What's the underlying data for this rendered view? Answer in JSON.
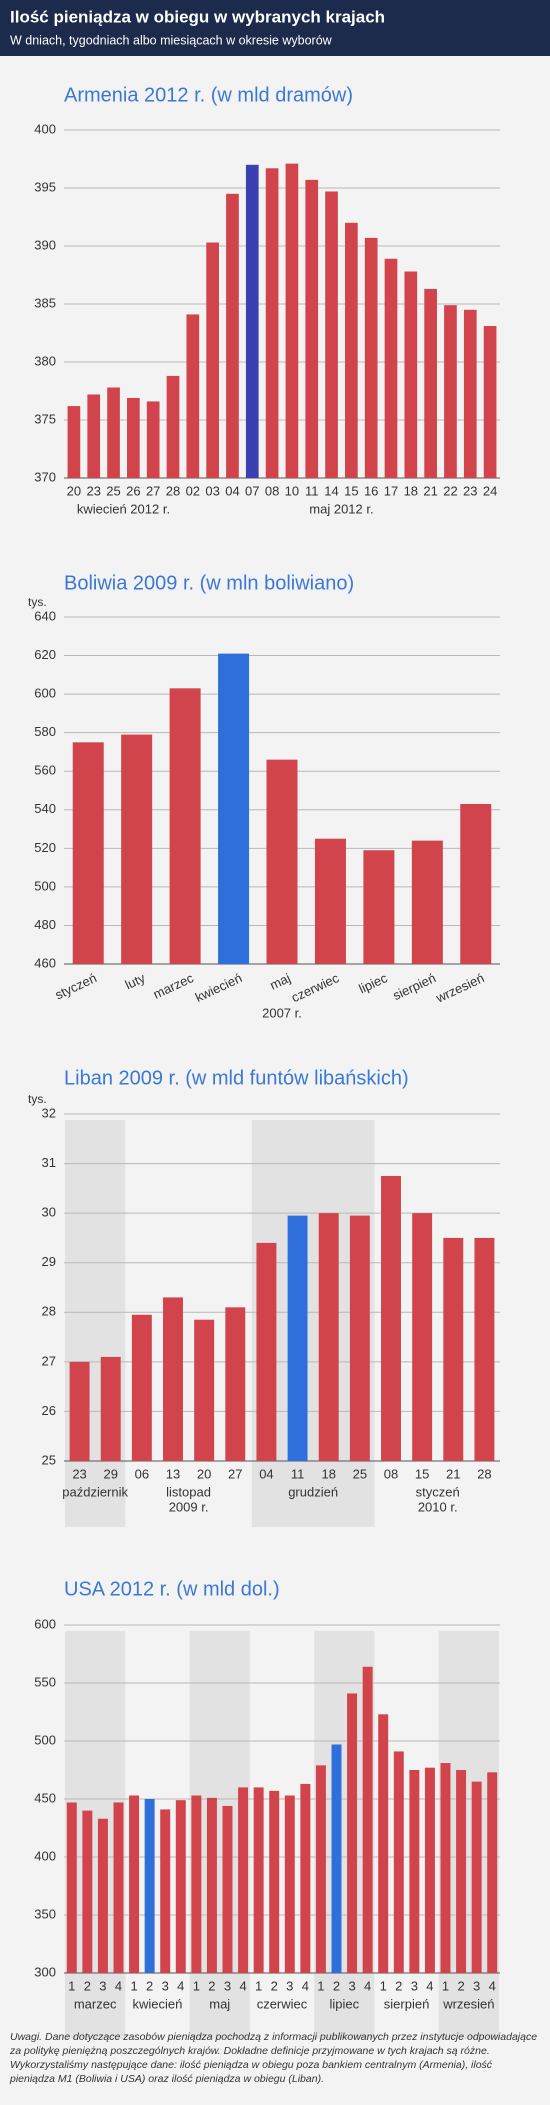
{
  "header": {
    "title": "Ilość pieniądza w obiegu w wybranych krajach",
    "subtitle": "W dniach, tygodniach albo miesiącach w okresie wyborów"
  },
  "chart_data": [
    {
      "type": "bar",
      "title": "Armenia 2012 r. (w mld dramów)",
      "categories": [
        "20",
        "23",
        "25",
        "26",
        "27",
        "28",
        "02",
        "03",
        "04",
        "07",
        "08",
        "10",
        "11",
        "14",
        "15",
        "16",
        "17",
        "18",
        "21",
        "22",
        "23",
        "24"
      ],
      "values": [
        376.2,
        377.2,
        377.8,
        376.9,
        376.6,
        378.8,
        384.1,
        390.3,
        394.5,
        397.0,
        396.7,
        397.1,
        395.7,
        394.7,
        392.0,
        390.7,
        388.9,
        387.8,
        386.3,
        384.9,
        384.5,
        383.1
      ],
      "colors": [
        "#d1444c",
        "#d1444c",
        "#d1444c",
        "#d1444c",
        "#d1444c",
        "#d1444c",
        "#d1444c",
        "#d1444c",
        "#d1444c",
        "#3b3fb0",
        "#d1444c",
        "#d1444c",
        "#d1444c",
        "#d1444c",
        "#d1444c",
        "#d1444c",
        "#d1444c",
        "#d1444c",
        "#d1444c",
        "#d1444c",
        "#d1444c",
        "#d1444c"
      ],
      "groups": [
        {
          "label": [
            "kwiecień 2012 r."
          ],
          "count": 6,
          "shaded": false
        },
        {
          "label": [
            "maj 2012 r."
          ],
          "count": 16,
          "shaded": false
        }
      ],
      "ylim": [
        370,
        400
      ],
      "yticks": [
        370,
        375,
        380,
        385,
        390,
        395,
        400
      ],
      "grid": true
    },
    {
      "type": "bar",
      "title": "Boliwia 2009 r. (w mln boliwiano)",
      "unit_label": "tys.",
      "categories": [
        "styczeń",
        "luty",
        "marzec",
        "kwiecień",
        "maj",
        "czerwiec",
        "lipiec",
        "sierpień",
        "wrzesień"
      ],
      "values": [
        575,
        579,
        603,
        621,
        566,
        525,
        519,
        524,
        543
      ],
      "colors": [
        "#d1444c",
        "#d1444c",
        "#d1444c",
        "#2f6fdc",
        "#d1444c",
        "#d1444c",
        "#d1444c",
        "#d1444c",
        "#d1444c"
      ],
      "label_rotation": -25,
      "groups": [
        {
          "label": [
            "2007 r."
          ],
          "count": 9,
          "shaded": false
        }
      ],
      "ylim": [
        460,
        640
      ],
      "yticks": [
        460,
        480,
        500,
        520,
        540,
        560,
        580,
        600,
        620,
        640
      ],
      "grid": true
    },
    {
      "type": "bar",
      "title": "Liban 2009 r. (w mld funtów libańskich)",
      "unit_label": "tys.",
      "categories": [
        "23",
        "29",
        "06",
        "13",
        "20",
        "27",
        "04",
        "11",
        "18",
        "25",
        "08",
        "15",
        "21",
        "28"
      ],
      "values": [
        27.0,
        27.1,
        27.95,
        28.3,
        27.85,
        28.1,
        29.4,
        29.95,
        30.0,
        29.95,
        30.75,
        30.0,
        29.5,
        29.5
      ],
      "colors": [
        "#d1444c",
        "#d1444c",
        "#d1444c",
        "#d1444c",
        "#d1444c",
        "#d1444c",
        "#d1444c",
        "#2f6fdc",
        "#d1444c",
        "#d1444c",
        "#d1444c",
        "#d1444c",
        "#d1444c",
        "#d1444c"
      ],
      "groups": [
        {
          "label": [
            "październik"
          ],
          "count": 2,
          "shaded": true
        },
        {
          "label": [
            "listopad",
            "2009 r."
          ],
          "count": 4,
          "shaded": false
        },
        {
          "label": [
            "grudzień"
          ],
          "count": 4,
          "shaded": true
        },
        {
          "label": [
            "styczeń",
            "2010 r."
          ],
          "count": 4,
          "shaded": false
        }
      ],
      "ylim": [
        25,
        32
      ],
      "yticks": [
        25,
        26,
        27,
        28,
        29,
        30,
        31,
        32
      ],
      "grid": true
    },
    {
      "type": "bar",
      "title": "USA 2012 r. (w mld dol.)",
      "categories": [
        "1",
        "2",
        "3",
        "4",
        "1",
        "2",
        "3",
        "4",
        "1",
        "2",
        "3",
        "4",
        "1",
        "2",
        "3",
        "4",
        "1",
        "2",
        "3",
        "4",
        "1",
        "2",
        "3",
        "4",
        "1",
        "2",
        "3",
        "4"
      ],
      "values": [
        447,
        440,
        433,
        447,
        453,
        450,
        441,
        449,
        453,
        451,
        444,
        460,
        460,
        457,
        453,
        463,
        479,
        497,
        541,
        564,
        523,
        491,
        475,
        477,
        481,
        475,
        465,
        473
      ],
      "colors": [
        "#d1444c",
        "#d1444c",
        "#d1444c",
        "#d1444c",
        "#d1444c",
        "#2f6fdc",
        "#d1444c",
        "#d1444c",
        "#d1444c",
        "#d1444c",
        "#d1444c",
        "#d1444c",
        "#d1444c",
        "#d1444c",
        "#d1444c",
        "#d1444c",
        "#d1444c",
        "#2f6fdc",
        "#d1444c",
        "#d1444c",
        "#d1444c",
        "#d1444c",
        "#d1444c",
        "#d1444c",
        "#d1444c",
        "#d1444c",
        "#d1444c",
        "#d1444c"
      ],
      "groups": [
        {
          "label": [
            "marzec"
          ],
          "count": 4,
          "shaded": true
        },
        {
          "label": [
            "kwiecień"
          ],
          "count": 4,
          "shaded": false
        },
        {
          "label": [
            "maj"
          ],
          "count": 4,
          "shaded": true
        },
        {
          "label": [
            "czerwiec"
          ],
          "count": 4,
          "shaded": false
        },
        {
          "label": [
            "lipiec"
          ],
          "count": 4,
          "shaded": true
        },
        {
          "label": [
            "sierpień"
          ],
          "count": 4,
          "shaded": false
        },
        {
          "label": [
            "wrzesień"
          ],
          "count": 4,
          "shaded": true
        }
      ],
      "ylim": [
        300,
        600
      ],
      "yticks": [
        300,
        350,
        400,
        450,
        500,
        550,
        600
      ],
      "grid": true
    }
  ],
  "note": "Uwagi. Dane dotyczące zasobów pieniądza pochodzą z informacji publikowanych przez instytucje odpowiadające za politykę pieniężną poszczególnych krajów. Dokładne definicje przyjmowane w tych krajach są różne. Wykorzystaliśmy następujące dane: ilość pieniądza w obiegu poza bankiem centralnym (Armenia), ilość pieniądza M1 (Boliwia i USA) oraz ilość pieniądza w obiegu (Liban)."
}
